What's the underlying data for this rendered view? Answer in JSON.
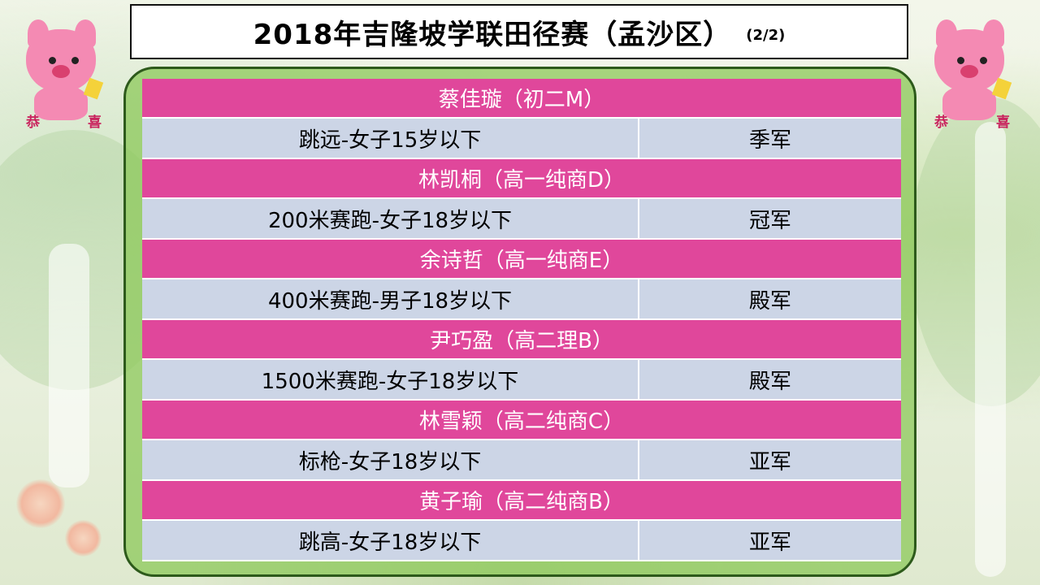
{
  "title": {
    "main": "2018年吉隆坡学联田径赛（孟沙区）",
    "page": "(2/2)"
  },
  "mascot": {
    "left_char": "恭",
    "right_char": "喜"
  },
  "entries": [
    {
      "name": "蔡佳璇（初二M）",
      "event": "跳远-女子15岁以下",
      "result": "季军"
    },
    {
      "name": "林凯桐（高一纯商D）",
      "event": "200米赛跑-女子18岁以下",
      "result": "冠军"
    },
    {
      "name": "余诗哲（高一纯商E）",
      "event": "400米赛跑-男子18岁以下",
      "result": "殿军"
    },
    {
      "name": "尹巧盈（高二理B）",
      "event": "1500米赛跑-女子18岁以下",
      "result": "殿军"
    },
    {
      "name": "林雪颖（高二纯商C）",
      "event": "标枪-女子18岁以下",
      "result": "亚军"
    },
    {
      "name": "黄子瑜（高二纯商B）",
      "event": "跳高-女子18岁以下",
      "result": "亚军"
    }
  ],
  "colors": {
    "name_row": "#e0479b",
    "event_row": "#ccd5e6",
    "panel_green": "#8cc85a"
  }
}
